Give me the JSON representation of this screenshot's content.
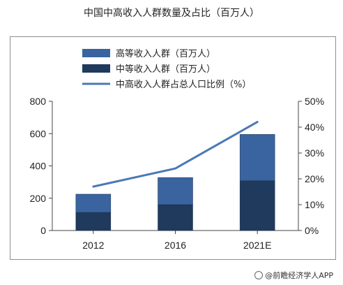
{
  "title": "中国中高收入人群数量及占比（百万人）",
  "source": "@前瞻经济学人APP",
  "chart_data": {
    "type": "bar",
    "stacked": true,
    "categories": [
      "2012",
      "2016",
      "2021E"
    ],
    "series": [
      {
        "name": "中等收入人群（百万人）",
        "values": [
          112,
          160,
          308
        ],
        "color": "#1f3a5c",
        "axis": "left"
      },
      {
        "name": "高等收入人群（百万人）",
        "values": [
          113,
          168,
          287
        ],
        "color": "#3a64a0",
        "axis": "left"
      },
      {
        "name": "中高收入人群占总人口比例（%）",
        "values": [
          17,
          24,
          42
        ],
        "color": "#4a79b5",
        "type": "line",
        "axis": "right"
      }
    ],
    "legend_order": [
      "高等收入人群（百万人）",
      "中等收入人群（百万人）",
      "中高收入人群占总人口比例（%）"
    ],
    "legend_position": "top-left",
    "ylim": [
      0,
      800
    ],
    "yticks": [
      "0",
      "200",
      "400",
      "600",
      "800"
    ],
    "y2lim": [
      0,
      50
    ],
    "y2ticks": [
      "0%",
      "10%",
      "20%",
      "30%",
      "40%",
      "50%"
    ],
    "grid": false
  }
}
